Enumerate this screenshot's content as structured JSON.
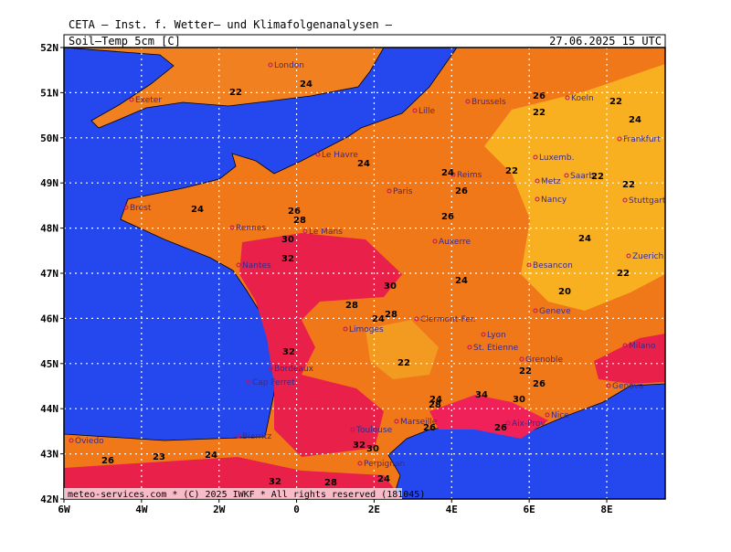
{
  "header": {
    "institute": "CETA – Inst. f. Wetter– und Klimafolgenanalysen –",
    "parameter": "Soil–Temp 5cm [C]",
    "valid": "27.06.2025 15 UTC"
  },
  "map": {
    "lat_labels": [
      "52N",
      "51N",
      "50N",
      "49N",
      "48N",
      "47N",
      "46N",
      "45N",
      "44N",
      "43N",
      "42N"
    ],
    "lon_labels": [
      "6W",
      "4W",
      "2W",
      "0",
      "2E",
      "4E",
      "6E",
      "8E"
    ],
    "cities": [
      "London",
      "Exeter",
      "Lille",
      "Brussels",
      "Koeln",
      "Frankfurt",
      "Luxemb.",
      "Le Havre",
      "Reims",
      "Metz",
      "Saarb.",
      "Paris",
      "Nancy",
      "Stuttgart",
      "Brest",
      "Rennes",
      "Le Mans",
      "Auxerre",
      "Nantes",
      "Besancon",
      "Zuerich",
      "Geneve",
      "Limoges",
      "Clermont-Fer.",
      "Lyon",
      "St. Etienne",
      "Grenoble",
      "Milano",
      "Bordeaux",
      "Cap Ferret",
      "Genova",
      "Nice",
      "Marseille",
      "Aix-Prov.",
      "Toulouse",
      "Biarritz",
      "Oviedo",
      "Perpignan"
    ],
    "contour_labels": [
      "24",
      "22",
      "22",
      "26",
      "22",
      "24",
      "22",
      "24",
      "24",
      "26",
      "22",
      "22",
      "24",
      "26",
      "28",
      "30",
      "26",
      "32",
      "24",
      "30",
      "28",
      "24",
      "28",
      "22",
      "24",
      "20",
      "22",
      "32",
      "22",
      "26",
      "24",
      "34",
      "30",
      "26",
      "28",
      "26",
      "32",
      "30",
      "23",
      "26",
      "24",
      "32",
      "28",
      "24"
    ]
  },
  "footer": "meteo-services.com * (C) 2025 IWKF * All rights reserved (181045)"
}
